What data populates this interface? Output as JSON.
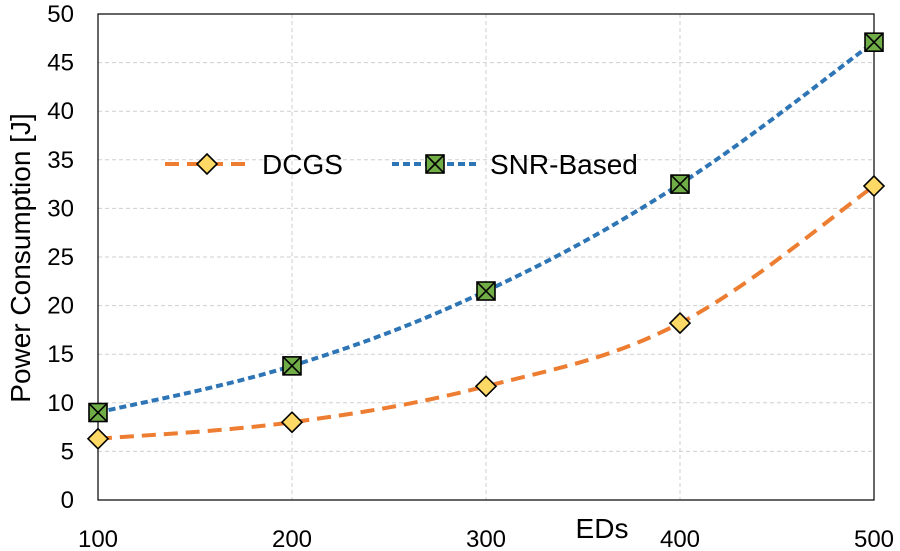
{
  "chart_data": {
    "type": "line",
    "title": "",
    "xlabel": "EDs",
    "ylabel": "Power Consumption [J]",
    "x": [
      100,
      200,
      300,
      400,
      500
    ],
    "xlim": [
      100,
      500
    ],
    "ylim": [
      0,
      50
    ],
    "xticks": [
      "100",
      "200",
      "300",
      "400",
      "500"
    ],
    "yticks": [
      "0",
      "5",
      "10",
      "15",
      "20",
      "25",
      "30",
      "35",
      "40",
      "45",
      "50"
    ],
    "grid": true,
    "legend_position": "upper-left",
    "series": [
      {
        "name": "DCGS",
        "values": [
          6.3,
          8.0,
          11.7,
          18.2,
          32.3
        ],
        "color": "#ED7D31",
        "marker": "diamond",
        "marker_fill": "#FFD966",
        "line_style": "dashed"
      },
      {
        "name": "SNR-Based",
        "values": [
          9.0,
          13.8,
          21.5,
          32.5,
          47.1
        ],
        "color": "#2E75B6",
        "marker": "square-x",
        "marker_fill": "#70AD47",
        "line_style": "dotted"
      }
    ]
  }
}
